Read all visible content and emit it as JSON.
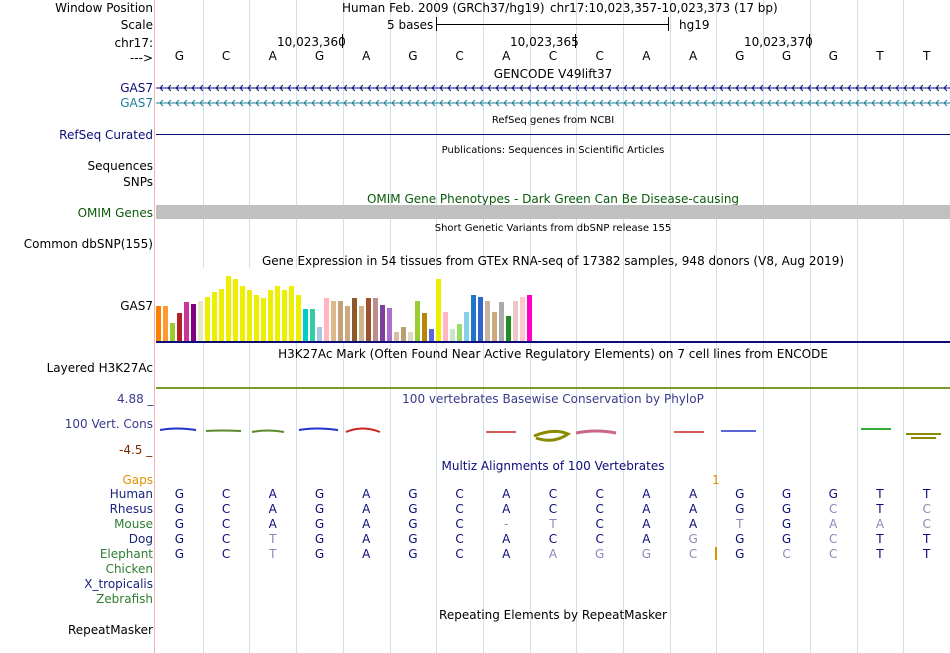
{
  "header": {
    "window_position_label": "Window Position",
    "scale_label": "Scale",
    "chrom_label": "chr17:",
    "strand_label": "--->",
    "assembly_text": "Human Feb. 2009 (GRCh37/hg19)",
    "position_text": "chr17:10,023,357-10,023,373 (17 bp)",
    "scale_text": "5 bases",
    "db_text": "hg19",
    "ticks": [
      "10,023,360",
      "10,023,365",
      "10,023,370"
    ]
  },
  "sequence": [
    "G",
    "C",
    "A",
    "G",
    "A",
    "G",
    "C",
    "A",
    "C",
    "C",
    "A",
    "A",
    "G",
    "G",
    "G",
    "T",
    "T"
  ],
  "tracks": {
    "gencode_title": "GENCODE V49lift37",
    "gencode_items": [
      "GAS7",
      "GAS7"
    ],
    "refseq_title": "RefSeq genes from NCBI",
    "refseq_label": "RefSeq Curated",
    "publications_title": "Publications: Sequences in Scientific Articles",
    "sequences_label": "Sequences",
    "snps_label": "SNPs",
    "omim_title": "OMIM Gene Phenotypes - Dark Green Can Be Disease-causing",
    "omim_label": "OMIM Genes",
    "dbsnp_title": "Short Genetic Variants from dbSNP release 155",
    "dbsnp_label": "Common dbSNP(155)",
    "gtex_title": "Gene Expression in 54 tissues from GTEx RNA-seq of 17382 samples, 948 donors (V8, Aug 2019)",
    "gtex_label": "GAS7",
    "h3k27_title": "H3K27Ac Mark (Often Found Near Active Regulatory Elements) on 7 cell lines from ENCODE",
    "h3k27_label": "Layered H3K27Ac",
    "phylop_title": "100 vertebrates Basewise Conservation by PhyloP",
    "phylop_label": "100 Vert. Cons",
    "phylop_max": "4.88 _",
    "phylop_min": "-4.5 _",
    "multiz_title": "Multiz Alignments of 100 Vertebrates",
    "gaps_label": "Gaps",
    "gaps_marker": "1",
    "repeat_title": "Repeating Elements by RepeatMasker",
    "repeat_label": "RepeatMasker"
  },
  "gtex_values": [
    {
      "v": 0.48,
      "c": "#ff7f00"
    },
    {
      "v": 0.48,
      "c": "#ff9933"
    },
    {
      "v": 0.26,
      "c": "#9acd32"
    },
    {
      "v": 0.39,
      "c": "#b22222"
    },
    {
      "v": 0.54,
      "c": "#cc3399"
    },
    {
      "v": 0.52,
      "c": "#800080"
    },
    {
      "v": 0.56,
      "c": "#e8e8c8"
    },
    {
      "v": 0.61,
      "c": "#eeee00"
    },
    {
      "v": 0.67,
      "c": "#eeee00"
    },
    {
      "v": 0.72,
      "c": "#eeee00"
    },
    {
      "v": 0.89,
      "c": "#eeee00"
    },
    {
      "v": 0.85,
      "c": "#eeee00"
    },
    {
      "v": 0.76,
      "c": "#eeee00"
    },
    {
      "v": 0.7,
      "c": "#eeee00"
    },
    {
      "v": 0.63,
      "c": "#eeee00"
    },
    {
      "v": 0.59,
      "c": "#eeee00"
    },
    {
      "v": 0.7,
      "c": "#eeee00"
    },
    {
      "v": 0.76,
      "c": "#eeee00"
    },
    {
      "v": 0.7,
      "c": "#eeee00"
    },
    {
      "v": 0.76,
      "c": "#eeee00"
    },
    {
      "v": 0.63,
      "c": "#eeee00"
    },
    {
      "v": 0.44,
      "c": "#00cccc"
    },
    {
      "v": 0.44,
      "c": "#33ccaa"
    },
    {
      "v": 0.2,
      "c": "#a6c8e0"
    },
    {
      "v": 0.59,
      "c": "#ffb6c1"
    },
    {
      "v": 0.56,
      "c": "#deb887"
    },
    {
      "v": 0.56,
      "c": "#c8a078"
    },
    {
      "v": 0.48,
      "c": "#cdaa7d"
    },
    {
      "v": 0.59,
      "c": "#8b5a2b"
    },
    {
      "v": 0.48,
      "c": "#d2b48c"
    },
    {
      "v": 0.59,
      "c": "#a0522d"
    },
    {
      "v": 0.59,
      "c": "#bc8f8f"
    },
    {
      "v": 0.5,
      "c": "#7b3f9e"
    },
    {
      "v": 0.46,
      "c": "#b06ccc"
    },
    {
      "v": 0.13,
      "c": "#d8bfa0"
    },
    {
      "v": 0.2,
      "c": "#b8a070"
    },
    {
      "v": 0.13,
      "c": "#e0d8c8"
    },
    {
      "v": 0.56,
      "c": "#9acd32"
    },
    {
      "v": 0.39,
      "c": "#b8860b"
    },
    {
      "v": 0.17,
      "c": "#5a6adc"
    },
    {
      "v": 0.85,
      "c": "#eeee00"
    },
    {
      "v": 0.41,
      "c": "#ffb6c1"
    },
    {
      "v": 0.17,
      "c": "#c8e6c8"
    },
    {
      "v": 0.24,
      "c": "#99dd66"
    },
    {
      "v": 0.41,
      "c": "#87ceeb"
    },
    {
      "v": 0.63,
      "c": "#1e78c8"
    },
    {
      "v": 0.61,
      "c": "#3366cc"
    },
    {
      "v": 0.56,
      "c": "#c8b4a0"
    },
    {
      "v": 0.41,
      "c": "#cdaa7d"
    },
    {
      "v": 0.54,
      "c": "#aaaaaa"
    },
    {
      "v": 0.35,
      "c": "#228b22"
    },
    {
      "v": 0.56,
      "c": "#e8c8c8"
    },
    {
      "v": 0.61,
      "c": "#ffc8c8"
    },
    {
      "v": 0.63,
      "c": "#ff00cc"
    }
  ],
  "multiz": [
    {
      "name": "Human",
      "color": "#1a237e",
      "bases": [
        "G",
        "C",
        "A",
        "G",
        "A",
        "G",
        "C",
        "A",
        "C",
        "C",
        "A",
        "A",
        "G",
        "G",
        "G",
        "T",
        "T"
      ]
    },
    {
      "name": "Rhesus",
      "color": "#1a237e",
      "bases": [
        "G",
        "C",
        "A",
        "G",
        "A",
        "G",
        "C",
        "A",
        "C",
        "C",
        "A",
        "A",
        "G",
        "G",
        "C",
        "T",
        "C"
      ]
    },
    {
      "name": "Mouse",
      "color": "#2e7d32",
      "bases": [
        "G",
        "C",
        "A",
        "G",
        "A",
        "G",
        "C",
        "-",
        "T",
        "C",
        "A",
        "A",
        "T",
        "G",
        "A",
        "A",
        "C"
      ]
    },
    {
      "name": "Dog",
      "color": "#1a237e",
      "bases": [
        "G",
        "C",
        "T",
        "G",
        "A",
        "G",
        "C",
        "A",
        "C",
        "C",
        "A",
        "G",
        "G",
        "G",
        "C",
        "T",
        "T"
      ]
    },
    {
      "name": "Elephant",
      "color": "#2e7d32",
      "bases": [
        "G",
        "C",
        "T",
        "G",
        "A",
        "G",
        "C",
        "A",
        "A",
        "G",
        "G",
        "C",
        "G",
        "C",
        "C",
        "T",
        "T"
      ]
    },
    {
      "name": "Chicken",
      "color": "#2e7d32",
      "bases": []
    },
    {
      "name": "X_tropicalis",
      "color": "#1a237e",
      "bases": []
    },
    {
      "name": "Zebrafish",
      "color": "#2e7d32",
      "bases": []
    }
  ],
  "colors": {
    "dark_blue": "#0c0c78",
    "teal": "#1d7f9b",
    "gencode_line": "#0c0c78",
    "omim_bar": "#c0c0c0",
    "omim_title": "#0b5a0b",
    "phylop": "#3a3a8c",
    "phylop_min": "#7a2a00",
    "gaps": "#e09000",
    "conserved_base": "#0c0c78",
    "variant_base": "#8a8ab8"
  }
}
